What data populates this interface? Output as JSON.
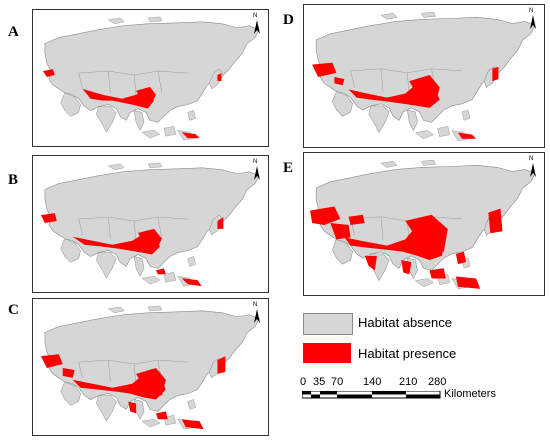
{
  "panels": [
    {
      "letter": "A",
      "north": "N"
    },
    {
      "letter": "B",
      "north": "N"
    },
    {
      "letter": "C",
      "north": "N"
    },
    {
      "letter": "D",
      "north": "N"
    },
    {
      "letter": "E",
      "north": "N"
    }
  ],
  "legend": {
    "absence_label": "Habitat absence",
    "presence_label": "Habitat presence",
    "absence_color": "#d6d6d6",
    "presence_color": "#ff0000"
  },
  "scale_bar": {
    "ticks": [
      "0",
      "35",
      "70",
      "140",
      "210",
      "280"
    ],
    "unit": "Kilometers"
  }
}
